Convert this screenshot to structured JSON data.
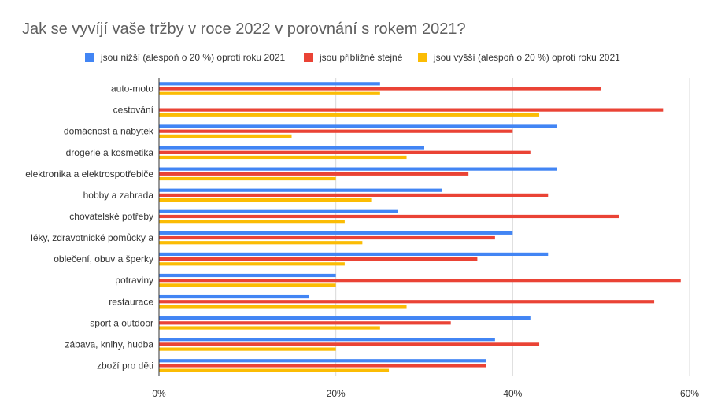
{
  "chart_data": {
    "type": "bar",
    "orientation": "horizontal",
    "title": "Jak se vyvíjí vaše tržby v roce 2022 v porovnání s rokem 2021?",
    "categories": [
      "auto-moto",
      "cestování",
      "domácnost a nábytek",
      "drogerie a kosmetika",
      "elektronika a elektrospotřebiče",
      "hobby a zahrada",
      "chovatelské potřeby",
      "léky, zdravotnické pomůcky a",
      "oblečení, obuv a šperky",
      "potraviny",
      "restaurace",
      "sport a outdoor",
      "zábava, knihy, hudba",
      "zboží pro děti"
    ],
    "series": [
      {
        "name": "jsou nižší (alespoň o 20 %) oproti roku 2021",
        "color": "#4285f4",
        "values": [
          25,
          0,
          45,
          30,
          45,
          32,
          27,
          40,
          44,
          20,
          17,
          42,
          38,
          37
        ]
      },
      {
        "name": "jsou přibližně stejné",
        "color": "#ea4335",
        "values": [
          50,
          57,
          40,
          42,
          35,
          44,
          52,
          38,
          36,
          59,
          56,
          33,
          43,
          37
        ]
      },
      {
        "name": "jsou vyšší (alespoň o 20 %) oproti roku 2021",
        "color": "#fbbc04",
        "values": [
          25,
          43,
          15,
          28,
          20,
          24,
          21,
          23,
          21,
          20,
          28,
          25,
          20,
          26
        ]
      }
    ],
    "xlim": [
      0,
      60
    ],
    "xticks": [
      0,
      20,
      40,
      60
    ],
    "xtick_labels": [
      "0%",
      "20%",
      "40%",
      "60%"
    ],
    "grid": true,
    "legend_position": "top"
  }
}
